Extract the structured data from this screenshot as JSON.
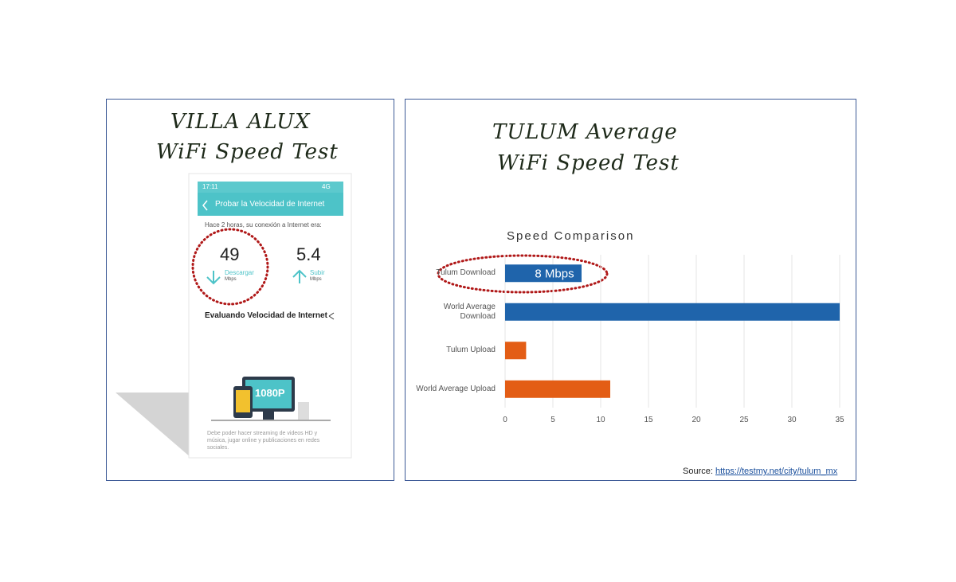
{
  "left_panel": {
    "title_line1": "VILLA ALUX",
    "title_line2": "WiFi Speed Test",
    "phone": {
      "time": "17:11",
      "network": "4G",
      "header": "Probar la Velocidad de Internet",
      "intro": "Hace 2 horas, su conexión a Internet era:",
      "download_value": "49",
      "download_label": "Descargar",
      "download_unit": "Mbps",
      "upload_value": "5.4",
      "upload_label": "Subir",
      "upload_unit": "Mbps",
      "evaluating": "Evaluando Velocidad de Internet",
      "screen_label": "1080P",
      "footer": "Debe poder hacer streaming de videos HD y música, jugar online y publicaciones en redes sociales."
    }
  },
  "right_panel": {
    "title_line1": "TULUM Average",
    "title_line2": "WiFi Speed Test",
    "source_label": "Source:",
    "source_link": "https://testmy.net/city/tulum_mx"
  },
  "chart_data": {
    "type": "hbar",
    "title": "Speed Comparison",
    "categories": [
      "Tulum Download",
      "World Average Download",
      "Tulum Upload",
      "World Average Upload"
    ],
    "values": [
      8,
      35,
      2.2,
      11
    ],
    "value_labels": [
      "8 Mbps",
      null,
      null,
      null
    ],
    "colors": [
      "#1f64ab",
      "#1f64ab",
      "#e35d15",
      "#e35d15"
    ],
    "xlim": [
      0,
      35
    ],
    "xticks": [
      0,
      5,
      10,
      15,
      20,
      25,
      30,
      35
    ],
    "grid": true
  }
}
